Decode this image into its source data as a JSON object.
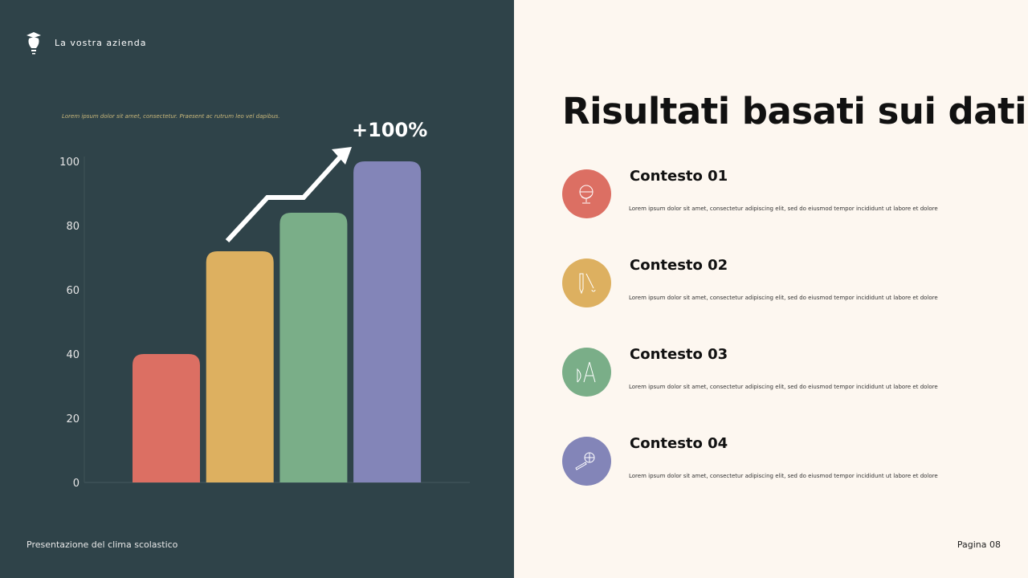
{
  "header": {
    "brand": "La vostra azienda",
    "subtitle": "Lorem ipsum dolor sit amet, consectetur. Praesent ac rutrum leo vel dapibus."
  },
  "slide": {
    "title": "Risultati basati sui dati",
    "footer_left": "Presentazione del clima scolastico",
    "footer_right": "Pagina 08"
  },
  "chart_data": {
    "type": "bar",
    "categories": [
      "Contesto 01",
      "Contesto 02",
      "Contesto 03",
      "Contesto 04"
    ],
    "values": [
      40,
      72,
      84,
      100
    ],
    "colors": [
      "#dc6f63",
      "#ddb060",
      "#7aae88",
      "#8385b8"
    ],
    "ylim": [
      0,
      100
    ],
    "yticks": [
      "0",
      "20",
      "40",
      "60",
      "80",
      "100"
    ],
    "annotation": "+100%",
    "grid": false
  },
  "items": [
    {
      "title": "Contesto 01",
      "desc": "Lorem ipsum dolor sit amet, consectetur adipiscing elit, sed do eiusmod tempor incididunt ut labore et dolore",
      "icon": "globe-icon",
      "color": "#dc6f63"
    },
    {
      "title": "Contesto 02",
      "desc": "Lorem ipsum dolor sit amet, consectetur adipiscing elit, sed do eiusmod tempor incididunt ut labore et dolore",
      "icon": "pencil-brush-icon",
      "color": "#ddb060"
    },
    {
      "title": "Contesto 03",
      "desc": "Lorem ipsum dolor sit amet, consectetur adipiscing elit, sed do eiusmod tempor incididunt ut labore et dolore",
      "icon": "compass-icon",
      "color": "#7aae88"
    },
    {
      "title": "Contesto 04",
      "desc": "Lorem ipsum dolor sit amet, consectetur adipiscing elit, sed do eiusmod tempor incididunt ut labore et dolore",
      "icon": "globe-pencil-icon",
      "color": "#8385b8"
    }
  ]
}
